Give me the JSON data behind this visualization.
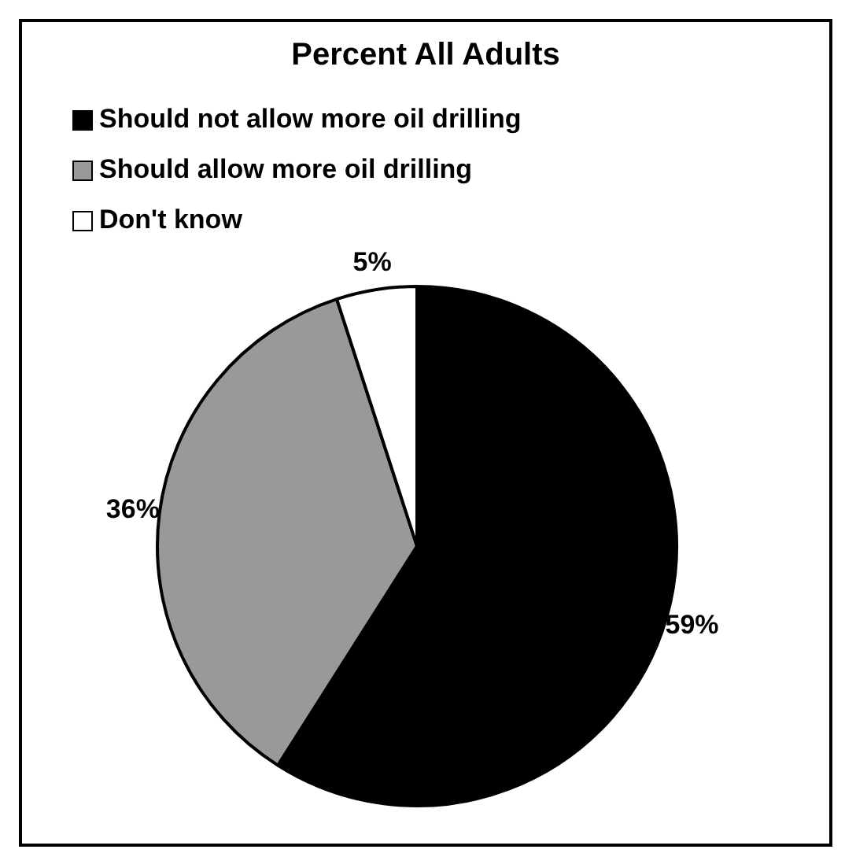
{
  "chart_data": {
    "type": "pie",
    "title": "Percent All Adults",
    "categories": [
      "Should not allow more oil drilling",
      "Should allow more oil drilling",
      "Don't know"
    ],
    "values": [
      59,
      36,
      5
    ],
    "colors": [
      "#000000",
      "#999999",
      "#ffffff"
    ],
    "value_labels": [
      "59%",
      "36%",
      "5%"
    ],
    "legend": "top left"
  }
}
